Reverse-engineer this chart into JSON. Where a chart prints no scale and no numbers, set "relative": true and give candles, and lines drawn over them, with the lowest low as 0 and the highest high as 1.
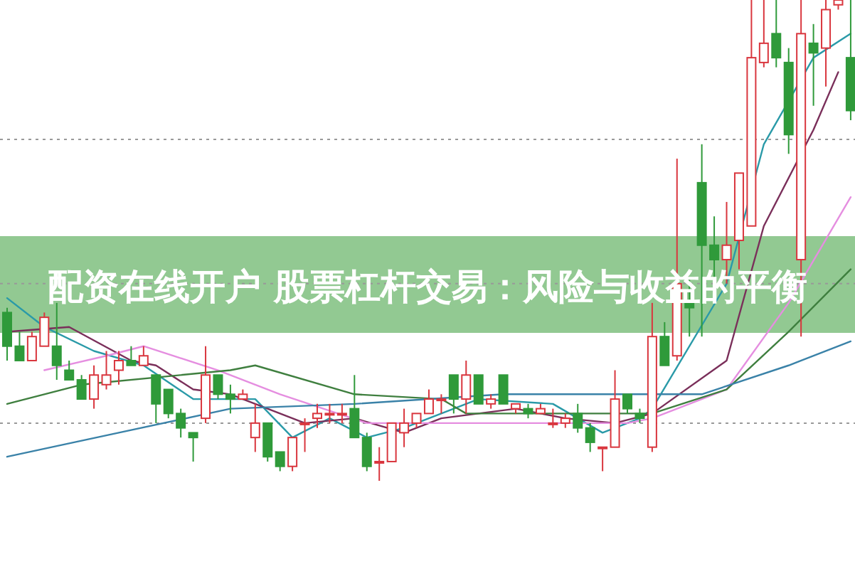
{
  "chart_data": {
    "type": "candlestick",
    "title": "配资在线开户 股票杠杆交易：风险与收益的平衡",
    "relative": true,
    "categories": [
      null,
      null,
      null,
      null,
      null,
      null,
      null,
      null,
      null,
      null,
      null,
      null,
      null,
      null,
      null,
      null,
      null,
      null,
      null,
      null,
      null,
      null,
      null,
      null,
      null,
      null,
      null,
      null,
      null,
      null,
      null,
      null,
      null,
      null,
      null,
      null,
      null,
      null,
      null,
      null,
      null,
      null,
      null,
      null,
      null,
      null,
      null,
      null,
      null,
      null,
      null,
      null,
      null,
      null,
      null,
      null,
      null,
      null,
      null,
      null,
      null,
      null,
      null,
      null,
      null,
      null,
      null,
      null,
      null
    ],
    "ohlc": [
      [
        0.35,
        0.36,
        0.25,
        0.28
      ],
      [
        0.28,
        0.31,
        0.25,
        0.25
      ],
      [
        0.25,
        0.31,
        0.25,
        0.3
      ],
      [
        0.28,
        0.35,
        0.28,
        0.34
      ],
      [
        0.28,
        0.37,
        0.21,
        0.24
      ],
      [
        0.23,
        0.25,
        0.21,
        0.21
      ],
      [
        0.21,
        0.22,
        0.17,
        0.17
      ],
      [
        0.17,
        0.24,
        0.15,
        0.22
      ],
      [
        0.2,
        0.27,
        0.19,
        0.22
      ],
      [
        0.23,
        0.27,
        0.2,
        0.25
      ],
      [
        0.25,
        0.28,
        0.24,
        0.24
      ],
      [
        0.24,
        0.28,
        0.24,
        0.26
      ],
      [
        0.22,
        0.22,
        0.12,
        0.16
      ],
      [
        0.19,
        0.19,
        0.13,
        0.14
      ],
      [
        0.14,
        0.15,
        0.09,
        0.11
      ],
      [
        0.1,
        0.1,
        0.04,
        0.09
      ],
      [
        0.13,
        0.28,
        0.12,
        0.22
      ],
      [
        0.22,
        0.22,
        0.17,
        0.18
      ],
      [
        0.18,
        0.2,
        0.14,
        0.17
      ],
      [
        0.17,
        0.19,
        0.17,
        0.18
      ],
      [
        0.09,
        0.16,
        0.06,
        0.12
      ],
      [
        0.12,
        0.12,
        0.04,
        0.05
      ],
      [
        0.06,
        0.06,
        0.02,
        0.03
      ],
      [
        0.03,
        0.09,
        0.02,
        0.09
      ],
      [
        0.12,
        0.13,
        0.06,
        0.12
      ],
      [
        0.13,
        0.16,
        0.11,
        0.14
      ],
      [
        0.14,
        0.16,
        0.12,
        0.14
      ],
      [
        0.14,
        0.16,
        0.12,
        0.14
      ],
      [
        0.15,
        0.22,
        0.09,
        0.09
      ],
      [
        0.09,
        0.1,
        0.02,
        0.03
      ],
      [
        0.04,
        0.07,
        0,
        0.04
      ],
      [
        0.04,
        0.12,
        0.04,
        0.12
      ],
      [
        0.1,
        0.15,
        0.07,
        0.12
      ],
      [
        0.12,
        0.14,
        0.11,
        0.14
      ],
      [
        0.14,
        0.19,
        0.14,
        0.17
      ],
      [
        0.17,
        0.18,
        0.14,
        0.17
      ],
      [
        0.22,
        0.22,
        0.14,
        0.17
      ],
      [
        0.17,
        0.25,
        0.14,
        0.22
      ],
      [
        0.22,
        0.22,
        0.16,
        0.16
      ],
      [
        0.16,
        0.18,
        0.15,
        0.17
      ],
      [
        0.22,
        0.22,
        0.16,
        0.16
      ],
      [
        0.15,
        0.16,
        0.14,
        0.16
      ],
      [
        0.15,
        0.16,
        0.13,
        0.14
      ],
      [
        0.14,
        0.16,
        0.14,
        0.15
      ],
      [
        0.12,
        0.15,
        0.11,
        0.12
      ],
      [
        0.12,
        0.14,
        0.11,
        0.13
      ],
      [
        0.14,
        0.16,
        0.1,
        0.11
      ],
      [
        0.11,
        0.12,
        0.06,
        0.08
      ],
      [
        0.07,
        0.07,
        0.02,
        0.07
      ],
      [
        0.07,
        0.23,
        0.07,
        0.17
      ],
      [
        0.18,
        0.18,
        0.14,
        0.15
      ],
      [
        0.14,
        0.15,
        0.12,
        0.13
      ],
      [
        0.07,
        0.37,
        0.06,
        0.3
      ],
      [
        0.3,
        0.33,
        0.24,
        0.24
      ],
      [
        0.26,
        0.67,
        0.25,
        0.41
      ],
      [
        0.37,
        0.42,
        0.3,
        0.36
      ],
      [
        0.62,
        0.7,
        0.3,
        0.49
      ],
      [
        0.49,
        0.55,
        0.42,
        0.46
      ],
      [
        0.46,
        0.58,
        0.41,
        0.49
      ],
      [
        0.5,
        0.64,
        0.44,
        0.64
      ],
      [
        0.53,
        1,
        0.53,
        0.88
      ],
      [
        0.87,
        1,
        0.86,
        0.91
      ],
      [
        0.93,
        1,
        0.86,
        0.88
      ],
      [
        0.87,
        0.9,
        0.68,
        0.72
      ],
      [
        0.46,
        1,
        0.3,
        0.93
      ],
      [
        0.91,
        0.95,
        0.78,
        0.89
      ],
      [
        0.9,
        1,
        0.82,
        0.98
      ],
      [
        0.99,
        1,
        0.98,
        1
      ],
      [
        0.88,
        1,
        0.75,
        0.77
      ]
    ],
    "series": [
      {
        "type": "line",
        "color": "#2a9aa8",
        "values": [
          0.38,
          null,
          null,
          0.32,
          null,
          null,
          null,
          0.27,
          null,
          null,
          null,
          0.24,
          null,
          null,
          null,
          0.17,
          null,
          null,
          0.17,
          null,
          0.17,
          null,
          null,
          0.09,
          null,
          null,
          0.13,
          null,
          null,
          0.09,
          null,
          null,
          0.11,
          null,
          null,
          0.14,
          null,
          null,
          0.17,
          null,
          null,
          null,
          null,
          null,
          0.16,
          null,
          null,
          null,
          0.1,
          null,
          null,
          0.13,
          0.15,
          null,
          null,
          null,
          null,
          null,
          0.41,
          null,
          null,
          0.7,
          null,
          null,
          null,
          0.88,
          null,
          null,
          0.93
        ]
      },
      {
        "type": "line",
        "color": "#7a2f5a",
        "values": [
          0.31,
          null,
          null,
          null,
          null,
          0.32,
          null,
          null,
          null,
          null,
          0.25,
          null,
          0.24,
          null,
          null,
          0.19,
          null,
          null,
          0.18,
          null,
          0.16,
          null,
          null,
          null,
          0.12,
          null,
          null,
          null,
          0.13,
          null,
          null,
          null,
          0.1,
          null,
          null,
          0.13,
          null,
          null,
          null,
          null,
          null,
          0.15,
          null,
          null,
          null,
          0.13,
          null,
          null,
          null,
          0.12,
          null,
          null,
          0.14,
          null,
          null,
          null,
          null,
          null,
          0.25,
          null,
          null,
          0.53,
          null,
          null,
          null,
          0.73,
          null,
          0.85,
          null
        ]
      },
      {
        "type": "line",
        "color": "#e58ee0",
        "values": [
          null,
          null,
          null,
          0.23,
          null,
          null,
          null,
          null,
          0.26,
          null,
          null,
          0.28,
          null,
          null,
          null,
          null,
          null,
          0.23,
          null,
          null,
          null,
          null,
          0.18,
          null,
          null,
          null,
          null,
          null,
          null,
          0.12,
          null,
          null,
          null,
          null,
          null,
          0.12,
          null,
          null,
          null,
          null,
          null,
          null,
          null,
          null,
          null,
          0.12,
          null,
          null,
          null,
          null,
          0.12,
          null,
          0.13,
          null,
          null,
          null,
          null,
          null,
          0.19,
          null,
          null,
          null,
          null,
          0.37,
          null,
          null,
          null,
          null,
          0.59
        ]
      },
      {
        "type": "line",
        "color": "#3f7f3f",
        "values": [
          0.16,
          null,
          null,
          null,
          null,
          null,
          0.2,
          null,
          null,
          null,
          null,
          null,
          null,
          null,
          null,
          null,
          null,
          null,
          0.23,
          null,
          0.24,
          null,
          null,
          null,
          null,
          null,
          null,
          null,
          0.18,
          null,
          null,
          null,
          null,
          null,
          null,
          0.17,
          null,
          0.14,
          null,
          null,
          null,
          null,
          null,
          null,
          null,
          null,
          null,
          null,
          null,
          null,
          null,
          null,
          0.14,
          null,
          null,
          null,
          null,
          null,
          0.19,
          null,
          null,
          null,
          null,
          0.31,
          null,
          null,
          null,
          null,
          0.44
        ]
      },
      {
        "type": "line",
        "color": "#3a82a8",
        "values": [
          0.05,
          null,
          null,
          null,
          null,
          null,
          null,
          null,
          null,
          0.1,
          null,
          null,
          null,
          null,
          null,
          null,
          null,
          null,
          0.15,
          null,
          null,
          null,
          null,
          null,
          null,
          null,
          null,
          null,
          0.16,
          null,
          null,
          null,
          null,
          null,
          null,
          null,
          null,
          null,
          null,
          null,
          0.18,
          null,
          null,
          null,
          null,
          null,
          null,
          null,
          null,
          null,
          null,
          0.18,
          null,
          null,
          null,
          null,
          0.18,
          null,
          null,
          null,
          null,
          null,
          null,
          0.24,
          null,
          null,
          null,
          null,
          0.29
        ]
      }
    ],
    "ref_lines": [
      {
        "axis": "y",
        "value": 0.71,
        "color": "#999999",
        "line_style": "dotted"
      },
      {
        "axis": "y",
        "value": 0.41,
        "color": "#999999",
        "line_style": "dotted"
      },
      {
        "axis": "y",
        "value": 0.12,
        "color": "#999999",
        "line_style": "dotted"
      }
    ]
  }
}
